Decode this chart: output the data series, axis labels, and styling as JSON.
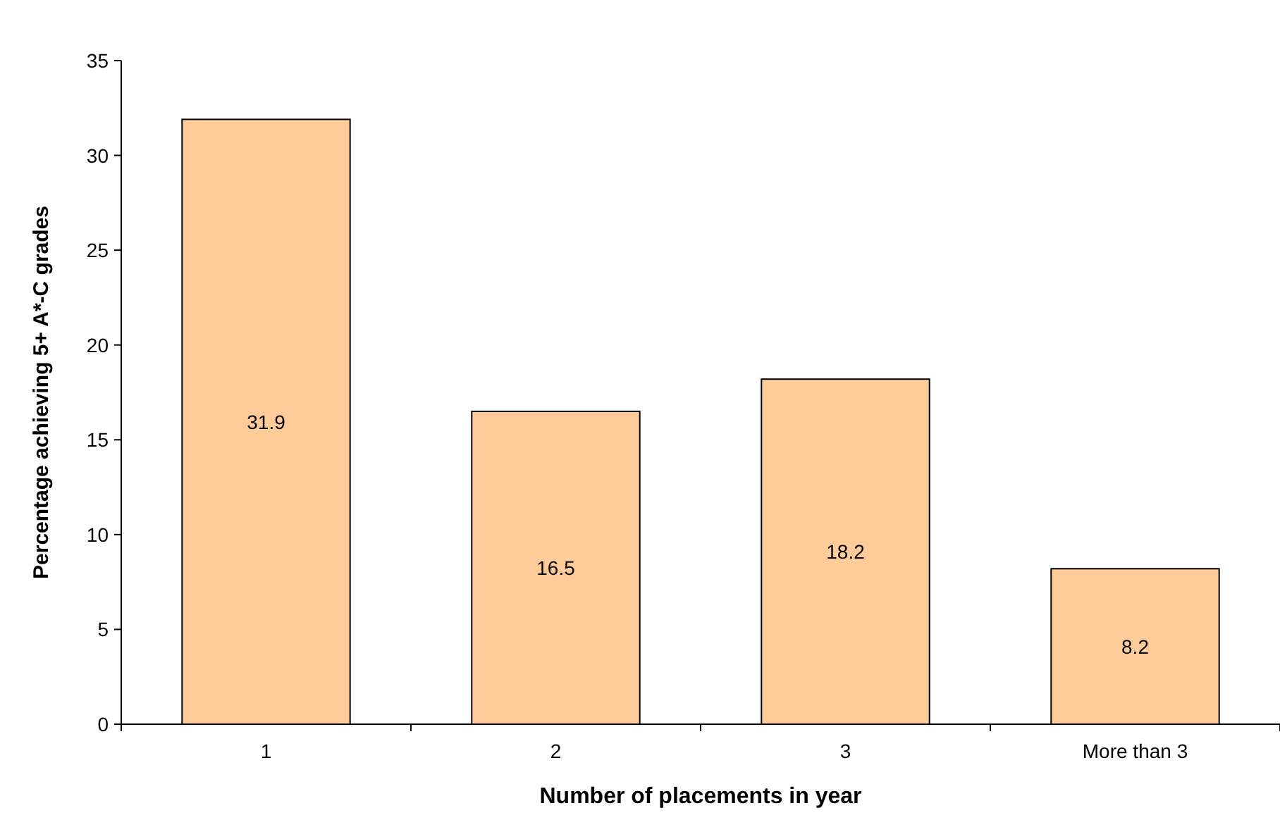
{
  "chart_data": {
    "type": "bar",
    "xlabel": "Number of placements in year",
    "ylabel": "Percentage achieving 5+ A*-C grades",
    "categories": [
      "1",
      "2",
      "3",
      "More than 3"
    ],
    "values": [
      31.9,
      16.5,
      18.2,
      8.2
    ],
    "color": "#ffcc99",
    "ylim": [
      0,
      35
    ],
    "yticks": [
      0,
      5,
      10,
      15,
      20,
      25,
      30,
      35
    ],
    "grid": false,
    "data_labels": true
  }
}
